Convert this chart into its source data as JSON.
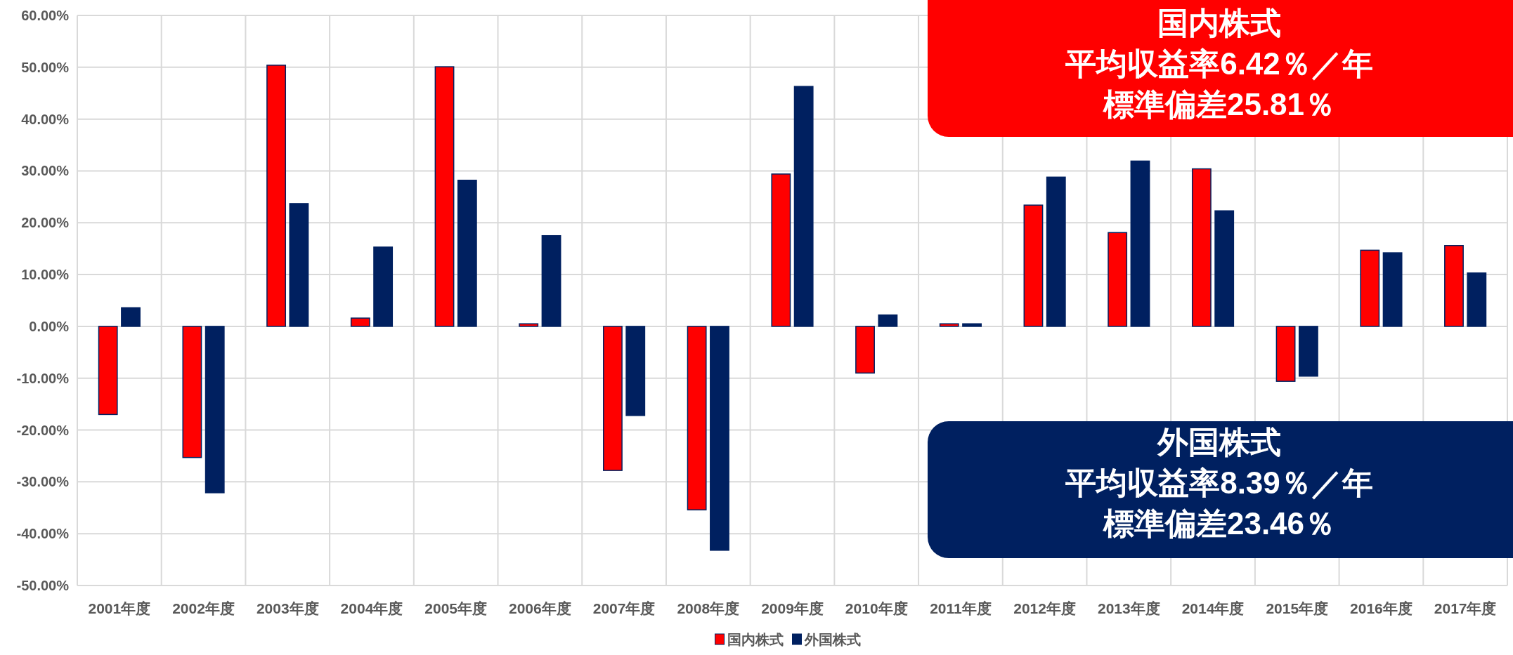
{
  "chart_data": {
    "type": "bar",
    "categories": [
      "2001年度",
      "2002年度",
      "2003年度",
      "2004年度",
      "2005年度",
      "2006年度",
      "2007年度",
      "2008年度",
      "2009年度",
      "2010年度",
      "2011年度",
      "2012年度",
      "2013年度",
      "2014年度",
      "2015年度",
      "2016年度",
      "2017年度"
    ],
    "series": [
      {
        "name": "国内株式",
        "color": "#ff0000",
        "values": [
          -17.0,
          -25.3,
          50.4,
          1.6,
          50.1,
          0.5,
          -27.8,
          -35.4,
          29.4,
          -9.0,
          0.5,
          23.4,
          18.1,
          30.4,
          -10.6,
          14.7,
          15.6
        ]
      },
      {
        "name": "外国株式",
        "color": "#002060",
        "values": [
          3.6,
          -32.1,
          23.7,
          15.3,
          28.2,
          17.5,
          -17.2,
          -43.2,
          46.3,
          2.2,
          0.5,
          28.8,
          31.9,
          22.3,
          -9.6,
          14.2,
          10.3
        ]
      }
    ],
    "ylim": [
      -50,
      60
    ],
    "yticks": [
      {
        "value": -50,
        "label": "-50.00%"
      },
      {
        "value": -40,
        "label": "-40.00%"
      },
      {
        "value": -30,
        "label": "-30.00%"
      },
      {
        "value": -20,
        "label": "-20.00%"
      },
      {
        "value": -10,
        "label": "-10.00%"
      },
      {
        "value": 0,
        "label": "0.00%"
      },
      {
        "value": 10,
        "label": "10.00%"
      },
      {
        "value": 20,
        "label": "20.00%"
      },
      {
        "value": 30,
        "label": "30.00%"
      },
      {
        "value": 40,
        "label": "40.00%"
      },
      {
        "value": 50,
        "label": "50.00%"
      },
      {
        "value": 60,
        "label": "60.00%"
      }
    ],
    "grid": true,
    "legend": "bottom",
    "annotations": [
      "国内株式",
      "平均収益率6.42％／年",
      "標準偏差25.81％",
      "外国株式",
      "平均収益率8.39％／年",
      "標準偏差23.46％"
    ]
  }
}
